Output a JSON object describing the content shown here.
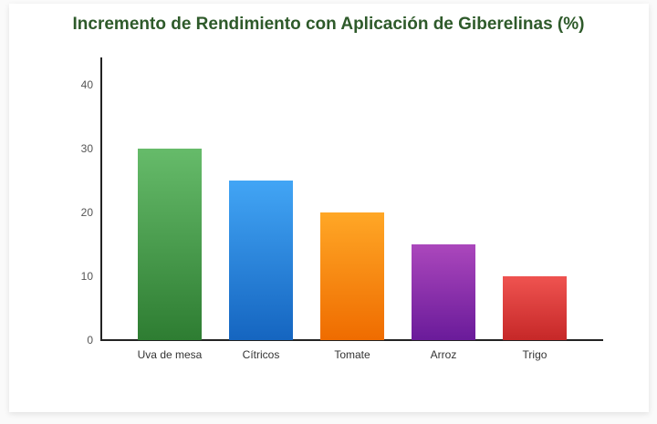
{
  "chart_data": {
    "type": "bar",
    "title": "Incremento de Rendimiento con Aplicación de Giberelinas (%)",
    "xlabel": "",
    "ylabel": "",
    "categories": [
      "Uva de mesa",
      "Cítricos",
      "Tomate",
      "Arroz",
      "Trigo"
    ],
    "values": [
      30,
      25,
      20,
      15,
      10
    ],
    "ylim": [
      0,
      44
    ],
    "yticks": [
      0,
      10,
      20,
      30,
      40
    ],
    "grid": false,
    "legend": "none",
    "colors": [
      {
        "top": "#66bb6a",
        "bottom": "#2e7d32"
      },
      {
        "top": "#42a5f5",
        "bottom": "#1565c0"
      },
      {
        "top": "#ffa726",
        "bottom": "#ef6c00"
      },
      {
        "top": "#ab47bc",
        "bottom": "#6a1b9a"
      },
      {
        "top": "#ef5350",
        "bottom": "#c62828"
      }
    ]
  },
  "labels": {
    "title": "Incremento de Rendimiento con Aplicación de Giberelinas (%)",
    "yticks": [
      "0",
      "10",
      "20",
      "30",
      "40"
    ],
    "categories": [
      "Uva de mesa",
      "Cítricos",
      "Tomate",
      "Arroz",
      "Trigo"
    ]
  }
}
